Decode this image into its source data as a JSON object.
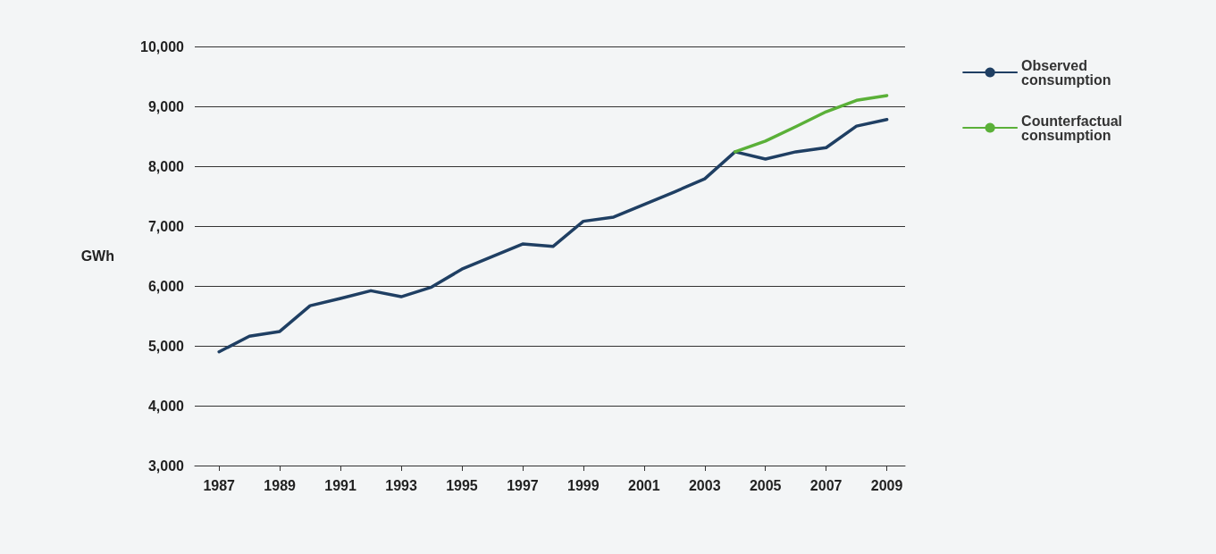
{
  "chart_data": {
    "type": "line",
    "ylabel": "GWh",
    "x": [
      1987,
      1988,
      1989,
      1990,
      1991,
      1992,
      1993,
      1994,
      1995,
      1996,
      1997,
      1998,
      1999,
      2000,
      2001,
      2002,
      2003,
      2004,
      2005,
      2006,
      2007,
      2008,
      2009
    ],
    "series": [
      {
        "name": "Observed consumption",
        "color": "#1f3f63",
        "values": [
          4900,
          5160,
          5240,
          5670,
          5790,
          5920,
          5820,
          5980,
          6280,
          6490,
          6700,
          6660,
          7080,
          7150,
          7360,
          7570,
          7790,
          8240,
          8120,
          8240,
          8310,
          8670,
          8780
        ]
      },
      {
        "name": "Counterfactual consumption",
        "color": "#5ab038",
        "x": [
          2004,
          2005,
          2006,
          2007,
          2008,
          2009
        ],
        "values": [
          8240,
          8420,
          8660,
          8910,
          9100,
          9180
        ]
      }
    ],
    "xlim": [
      1986.2,
      2009.6
    ],
    "xticks": [
      1987,
      1989,
      1991,
      1993,
      1995,
      1997,
      1999,
      2001,
      2003,
      2005,
      2007,
      2009
    ],
    "ylim": [
      3000,
      10000
    ],
    "yticks": [
      {
        "value": 3000,
        "label": "3,000"
      },
      {
        "value": 4000,
        "label": "4,000"
      },
      {
        "value": 5000,
        "label": "5,000"
      },
      {
        "value": 6000,
        "label": "6,000"
      },
      {
        "value": 7000,
        "label": "7,000"
      },
      {
        "value": 8000,
        "label": "8,000"
      },
      {
        "value": 9000,
        "label": "9,000"
      },
      {
        "value": 10000,
        "label": "10,000"
      }
    ],
    "grid": "y",
    "legend": "right",
    "marker": "none",
    "line_style": "solid"
  }
}
